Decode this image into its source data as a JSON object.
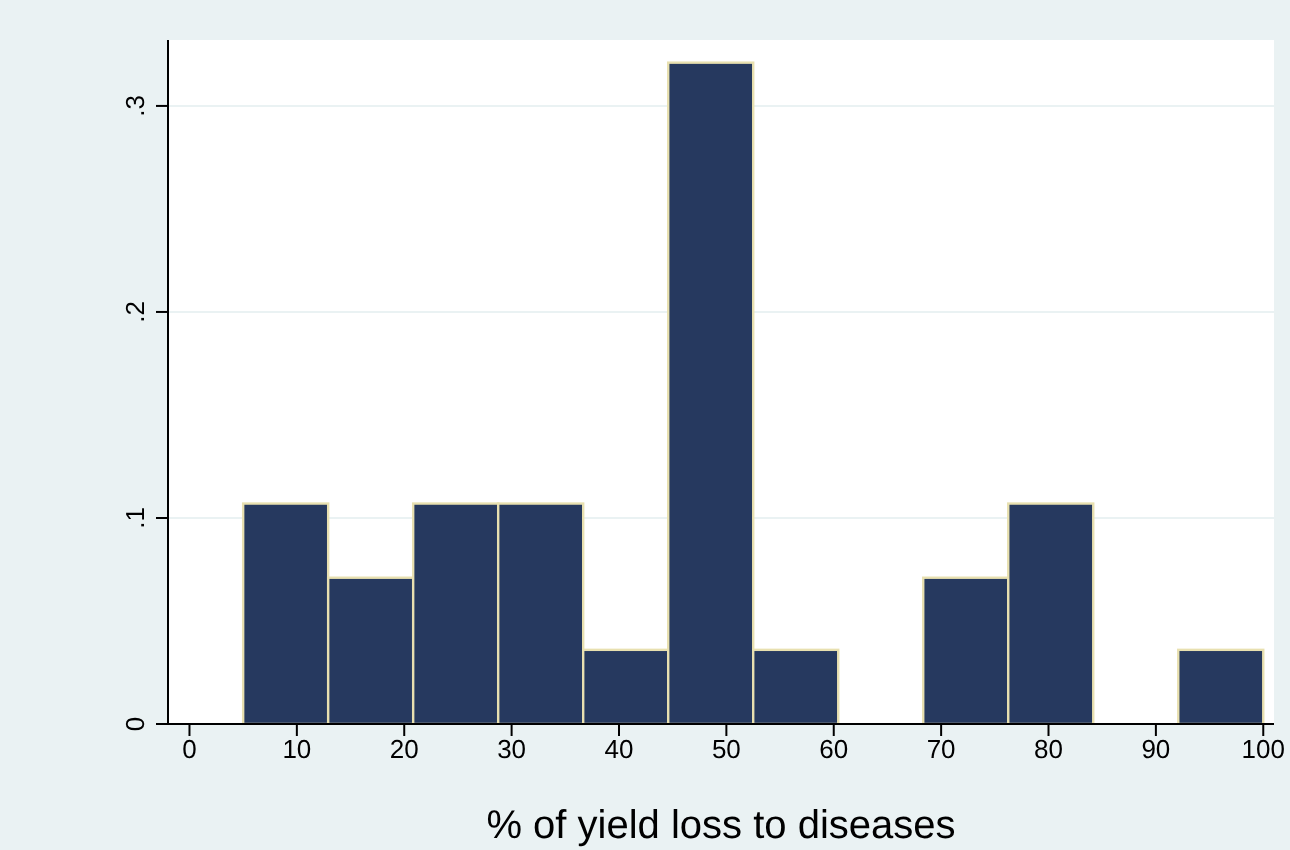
{
  "chart_data": {
    "type": "histogram",
    "xlabel": "% of yield loss to diseases",
    "bins": [
      5,
      12.9167,
      20.8333,
      28.75,
      36.6667,
      44.5833,
      52.5,
      60.4167,
      68.3333,
      76.25,
      84.1667,
      92.0833,
      100
    ],
    "values": [
      0.107,
      0.071,
      0.107,
      0.107,
      0.036,
      0.321,
      0.036,
      0,
      0.071,
      0.107,
      0,
      0.036
    ],
    "color": "#26395f",
    "xlim": [
      -2,
      101
    ],
    "xticks": [
      0,
      10,
      20,
      30,
      40,
      50,
      60,
      70,
      80,
      90,
      100
    ],
    "ylim": [
      0,
      0.332
    ],
    "yticks": [
      0,
      {
        "value": 0.1,
        "label": ".1"
      },
      {
        "value": 0.2,
        "label": ".2"
      },
      {
        "value": 0.3,
        "label": ".3"
      }
    ],
    "grid": "y"
  }
}
